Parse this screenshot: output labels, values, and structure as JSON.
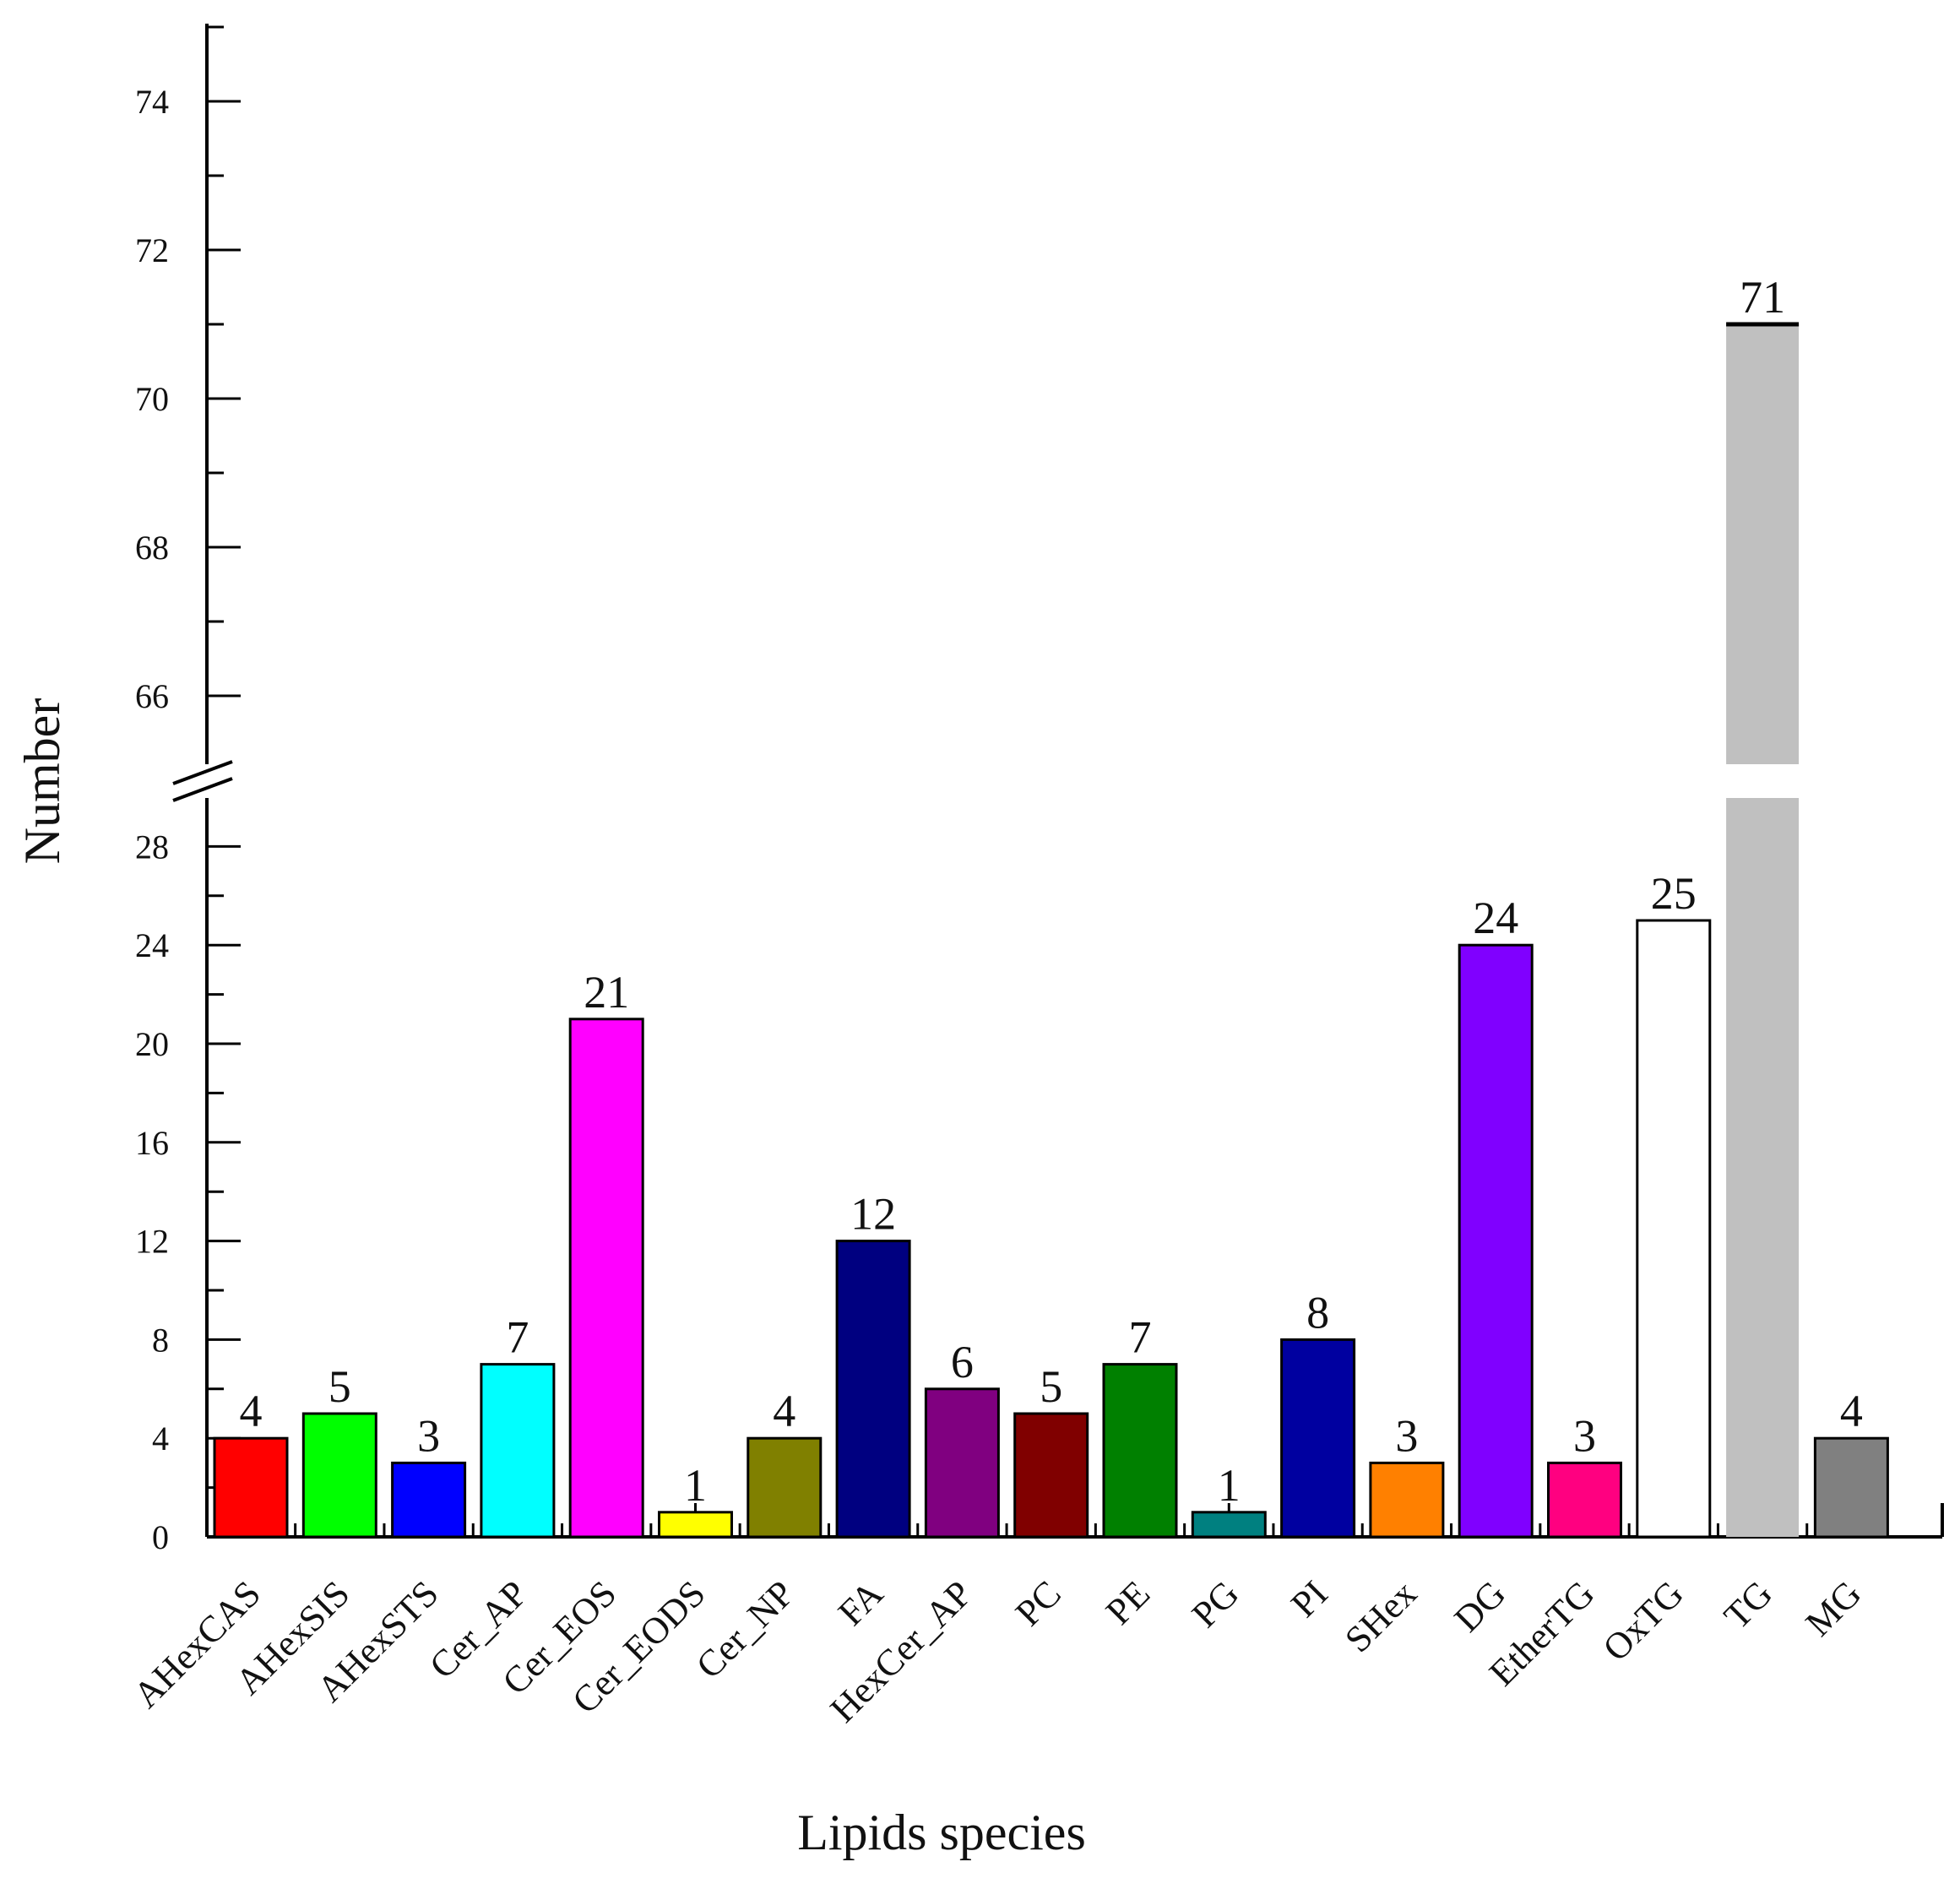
{
  "chart_data": {
    "type": "bar",
    "xlabel": "Lipids species",
    "ylabel": "Number",
    "categories": [
      "AHexCAS",
      "AHexSIS",
      "AHexSTS",
      "Cer_AP",
      "Cer_EOS",
      "Cer_EODS",
      "Cer_NP",
      "FA",
      "HexCer_AP",
      "PC",
      "PE",
      "PG",
      "PI",
      "SHex",
      "DG",
      "EtherTG",
      "OxTG",
      "TG",
      "MG"
    ],
    "values": [
      4,
      5,
      3,
      7,
      21,
      1,
      4,
      12,
      6,
      5,
      7,
      1,
      8,
      3,
      24,
      3,
      25,
      71,
      4
    ],
    "value_labels": [
      "4",
      "5",
      "3",
      "7",
      "21",
      "1",
      "4",
      "12",
      "6",
      "5",
      "7",
      "1",
      "8",
      "3",
      "24",
      "3",
      "25",
      "71",
      "4"
    ],
    "colors": [
      "#ff0000",
      "#00ff00",
      "#0000ff",
      "#00ffff",
      "#ff00ff",
      "#ffff00",
      "#808000",
      "#000080",
      "#800080",
      "#800000",
      "#008000",
      "#008080",
      "#0000a0",
      "#ff8000",
      "#8000ff",
      "#ff0080",
      "#ffffff",
      "#c0c0c0",
      "#808080"
    ],
    "y_axis_lower": {
      "range": [
        0,
        30
      ],
      "ticks": [
        "0",
        "4",
        "8",
        "12",
        "16",
        "20",
        "24",
        "28"
      ]
    },
    "y_axis_upper": {
      "range": [
        65,
        75
      ],
      "ticks": [
        "66",
        "68",
        "70",
        "72",
        "74"
      ]
    },
    "axis_break": true
  }
}
